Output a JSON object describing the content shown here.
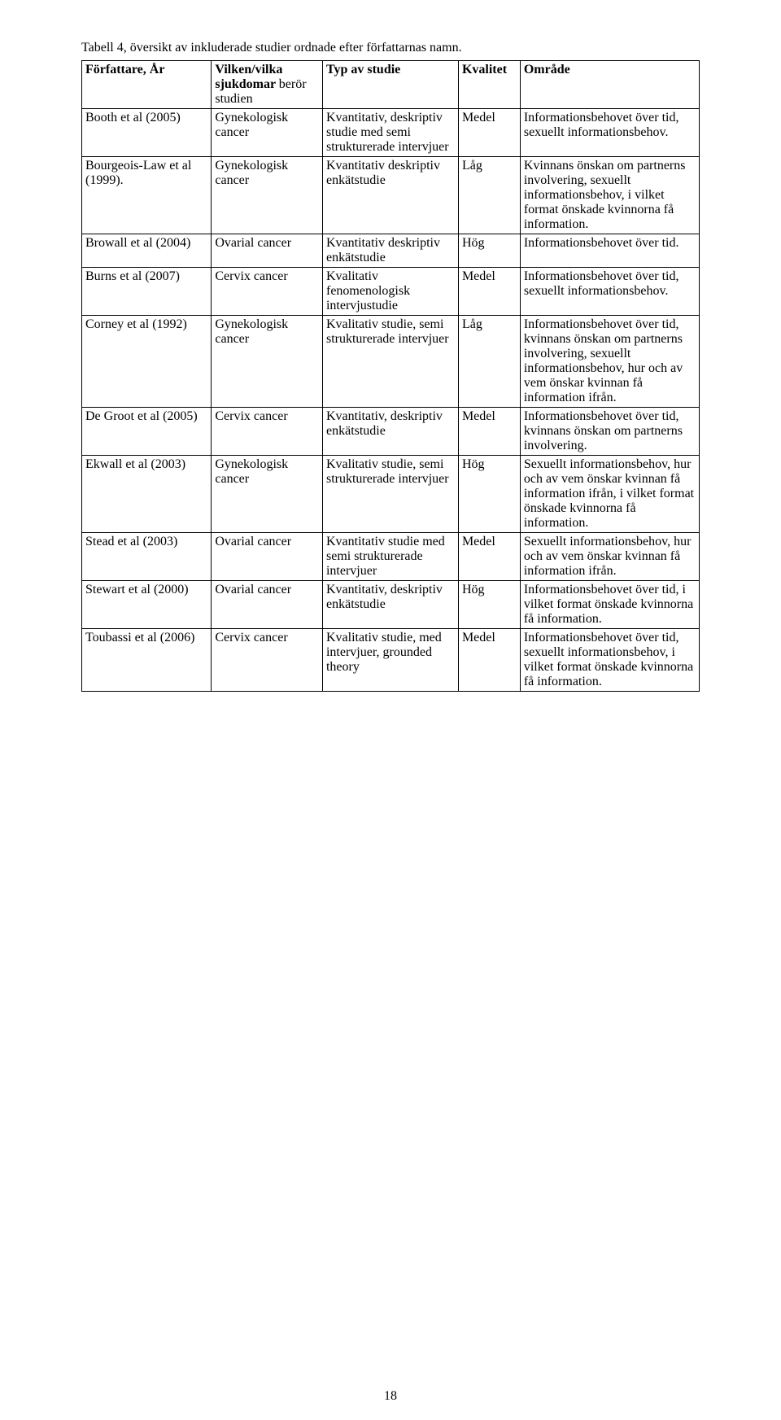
{
  "caption": "Tabell 4, översikt av inkluderade studier ordnade efter författarnas namn.",
  "headers": {
    "c1": "Författare, År",
    "c2_bold": "Vilken/vilka sjukdomar ",
    "c2_normal": "berör studien",
    "c3": "Typ av studie",
    "c4": "Kvalitet",
    "c5": "Område"
  },
  "rows": [
    {
      "c1": "Booth et al (2005)",
      "c2": "Gynekologisk cancer",
      "c3": "Kvantitativ, deskriptiv studie med semi strukturerade intervjuer",
      "c4": "Medel",
      "c5": "Informationsbehovet över tid, sexuellt informationsbehov."
    },
    {
      "c1": "Bourgeois-Law et al (1999).",
      "c2": "Gynekologisk cancer",
      "c3": "Kvantitativ deskriptiv enkätstudie",
      "c4": "Låg",
      "c5": "Kvinnans önskan om partnerns involvering, sexuellt informationsbehov, i vilket format önskade kvinnorna få information."
    },
    {
      "c1": "Browall et al (2004)",
      "c2": "Ovarial cancer",
      "c3": "Kvantitativ deskriptiv enkätstudie",
      "c4": "Hög",
      "c5": "Informationsbehovet över tid."
    },
    {
      "c1": "Burns et al (2007)",
      "c2": "Cervix cancer",
      "c3": "Kvalitativ fenomenologisk intervjustudie",
      "c4": "Medel",
      "c5": "Informationsbehovet över tid, sexuellt informationsbehov."
    },
    {
      "c1": "Corney et al (1992)",
      "c2": "Gynekologisk cancer",
      "c3": "Kvalitativ studie, semi strukturerade intervjuer",
      "c4": "Låg",
      "c5": "Informationsbehovet över tid, kvinnans önskan om partnerns involvering, sexuellt informationsbehov, hur och av vem önskar kvinnan få information ifrån."
    },
    {
      "c1": "De Groot et al (2005)",
      "c2": "Cervix cancer",
      "c3": "Kvantitativ, deskriptiv enkätstudie",
      "c4": "Medel",
      "c5": "Informationsbehovet över tid, kvinnans önskan om partnerns involvering."
    },
    {
      "c1": "Ekwall et al (2003)",
      "c2": "Gynekologisk cancer",
      "c3": "Kvalitativ studie, semi strukturerade intervjuer",
      "c4": "Hög",
      "c5": "Sexuellt informationsbehov, hur och av vem önskar kvinnan få information ifrån, i vilket format önskade kvinnorna få information."
    },
    {
      "c1": "Stead et al (2003)",
      "c2": "Ovarial cancer",
      "c3": "Kvantitativ studie med semi strukturerade intervjuer",
      "c4": "Medel",
      "c5": "Sexuellt informationsbehov, hur och av vem önskar kvinnan få information ifrån."
    },
    {
      "c1": "Stewart et al (2000)",
      "c2": "Ovarial cancer",
      "c3": "Kvantitativ, deskriptiv enkätstudie",
      "c4": "Hög",
      "c5": "Informationsbehovet över tid, i vilket format önskade kvinnorna få information."
    },
    {
      "c1": "Toubassi et al (2006)",
      "c2": "Cervix cancer",
      "c3": "Kvalitativ studie, med intervjuer, grounded theory",
      "c4": "Medel",
      "c5": "Informationsbehovet över tid, sexuellt informationsbehov, i vilket format önskade kvinnorna få information."
    }
  ],
  "page_number": "18"
}
